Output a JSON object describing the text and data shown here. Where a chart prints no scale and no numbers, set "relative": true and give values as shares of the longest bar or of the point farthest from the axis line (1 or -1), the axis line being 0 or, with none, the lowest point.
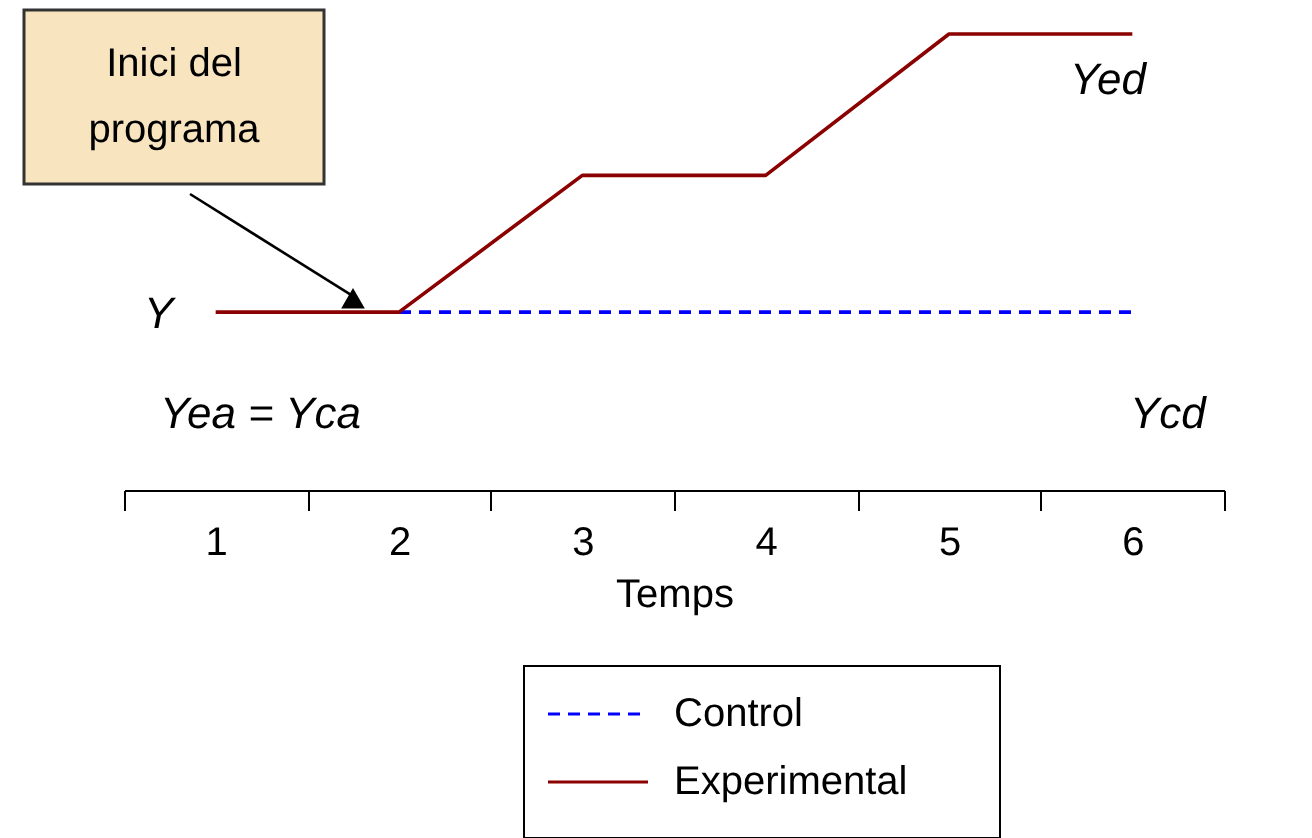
{
  "chart_data": {
    "type": "line",
    "relative": true,
    "categories": [
      "1",
      "2",
      "3",
      "4",
      "5",
      "6"
    ],
    "xlabel": "Temps",
    "series": [
      {
        "name": "Control",
        "color": "#0000ff",
        "line_style": "dashed",
        "values": [
          null,
          0.39,
          0.39,
          0.39,
          0.39,
          0.39
        ]
      },
      {
        "name": "Experimental",
        "color": "#8b0000",
        "line_style": "solid",
        "values": [
          0.39,
          0.39,
          0.69,
          0.69,
          1,
          1
        ]
      }
    ],
    "annotations": [
      "Inici del programa",
      "Y",
      "Yea = Yca",
      "Yed",
      "Ycd"
    ],
    "legend": "bottom"
  }
}
